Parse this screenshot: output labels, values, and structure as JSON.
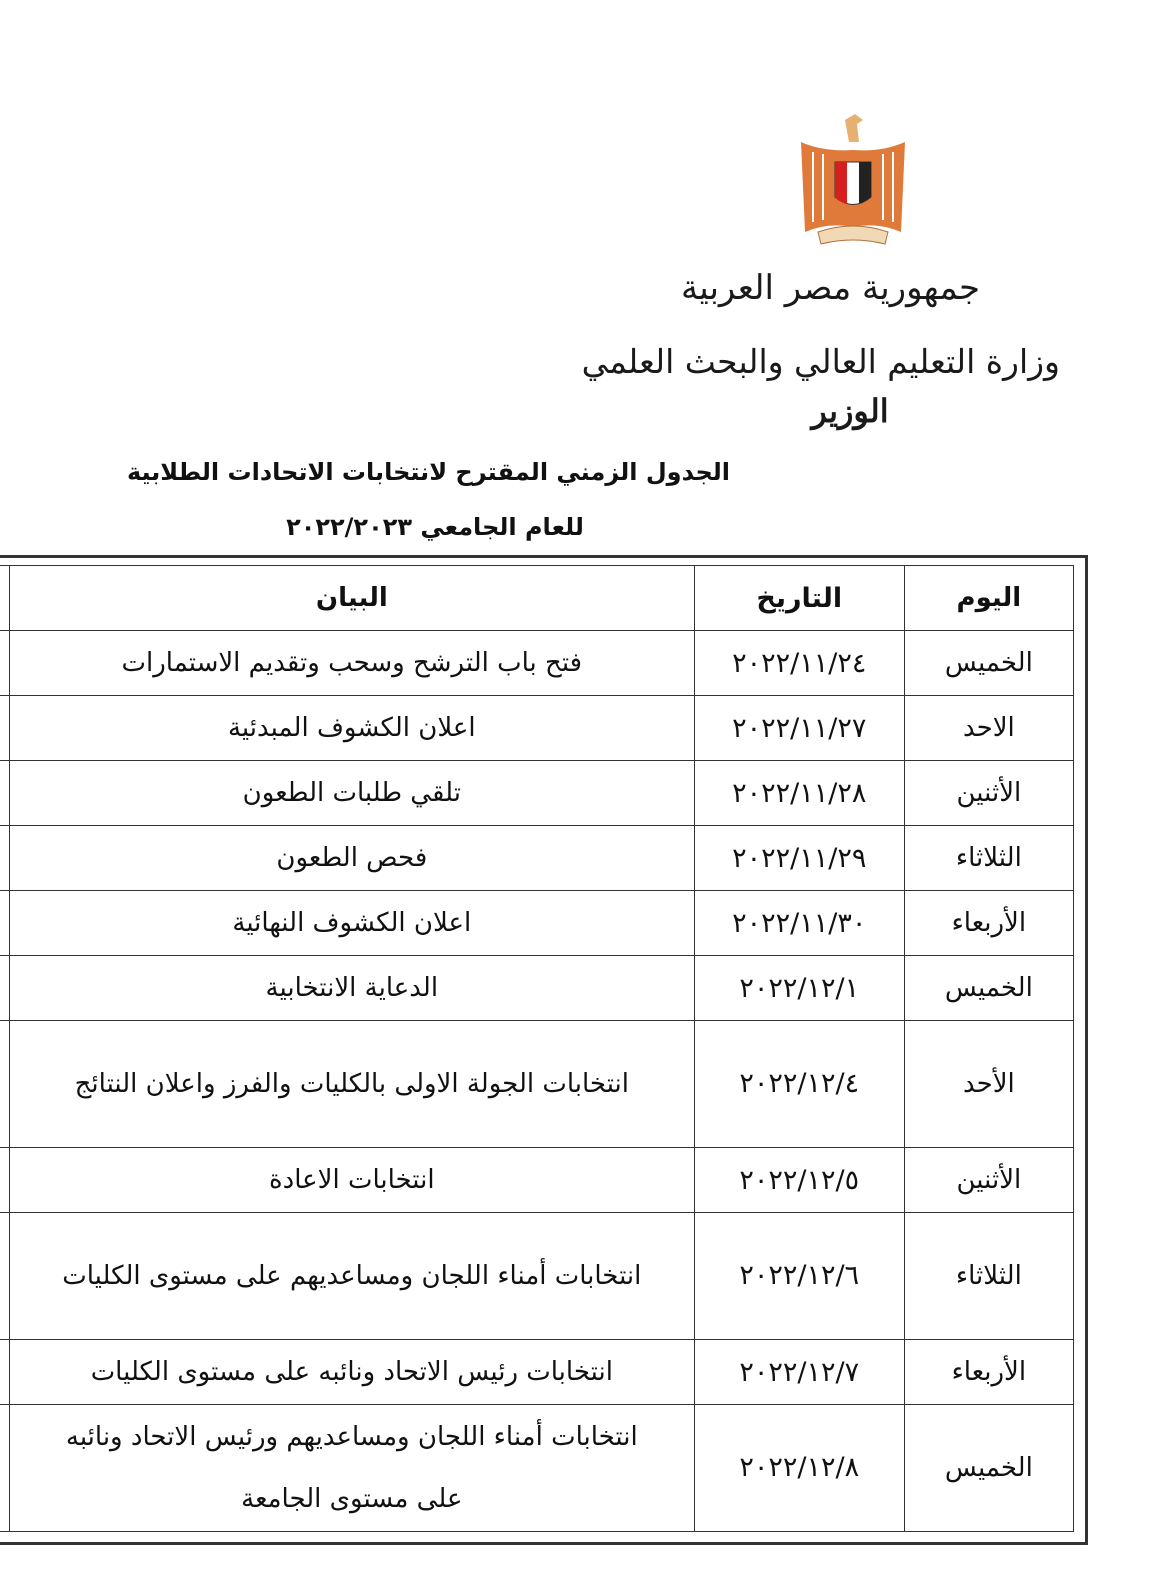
{
  "letterhead": {
    "emblem": "egypt-eagle-emblem",
    "country": "جمهورية مصر العربية",
    "ministry": "وزارة التعليم العالي والبحث العلمي",
    "office": "الوزير"
  },
  "title": {
    "line1": "الجدول الزمني المقترح لانتخابات الاتحادات الطلابية",
    "line2": "للعام الجامعي ٢٠٢٢/٢٠٢٣"
  },
  "table": {
    "headers": {
      "day": "اليوم",
      "date": "التاريخ",
      "description": "البيان"
    },
    "rows": [
      {
        "day": "الخميس",
        "date": "٢٠٢٢/١١/٢٤",
        "description": "فتح باب الترشح وسحب وتقديم الاستمارات"
      },
      {
        "day": "الاحد",
        "date": "٢٠٢٢/١١/٢٧",
        "description": "اعلان الكشوف المبدئية"
      },
      {
        "day": "الأثنين",
        "date": "٢٠٢٢/١١/٢٨",
        "description": "تلقي طلبات الطعون"
      },
      {
        "day": "الثلاثاء",
        "date": "٢٠٢٢/١١/٢٩",
        "description": "فحص الطعون"
      },
      {
        "day": "الأربعاء",
        "date": "٢٠٢٢/١١/٣٠",
        "description": "اعلان الكشوف النهائية"
      },
      {
        "day": "الخميس",
        "date": "٢٠٢٢/١٢/١",
        "description": "الدعاية الانتخابية"
      },
      {
        "day": "الأحد",
        "date": "٢٠٢٢/١٢/٤",
        "description": "انتخابات الجولة الاولى بالكليات والفرز واعلان النتائج"
      },
      {
        "day": "الأثنين",
        "date": "٢٠٢٢/١٢/٥",
        "description": "انتخابات الاعادة"
      },
      {
        "day": "الثلاثاء",
        "date": "٢٠٢٢/١٢/٦",
        "description": "انتخابات أمناء اللجان ومساعديهم على مستوى الكليات"
      },
      {
        "day": "الأربعاء",
        "date": "٢٠٢٢/١٢/٧",
        "description": "انتخابات رئيس الاتحاد ونائبه على مستوى الكليات"
      },
      {
        "day": "الخميس",
        "date": "٢٠٢٢/١٢/٨",
        "description": "انتخابات أمناء اللجان ومساعديهم ورئيس الاتحاد ونائبه على مستوى الجامعة"
      }
    ]
  }
}
